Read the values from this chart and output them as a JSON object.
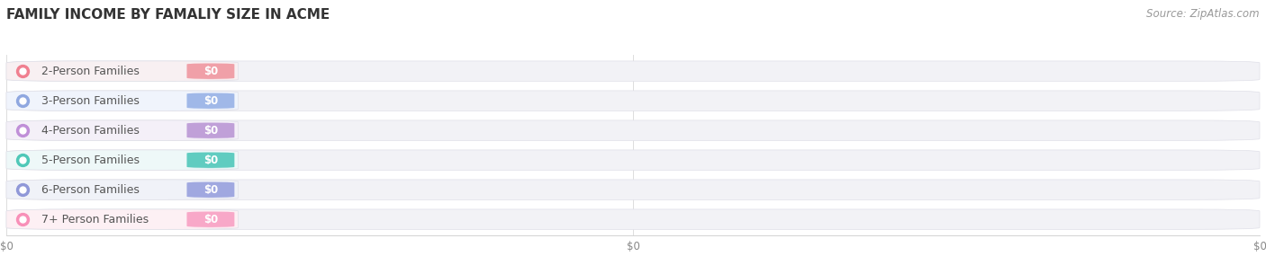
{
  "title": "FAMILY INCOME BY FAMALIY SIZE IN ACME",
  "source": "Source: ZipAtlas.com",
  "categories": [
    "2-Person Families",
    "3-Person Families",
    "4-Person Families",
    "5-Person Families",
    "6-Person Families",
    "7+ Person Families"
  ],
  "values": [
    0,
    0,
    0,
    0,
    0,
    0
  ],
  "dot_colors": [
    "#f08090",
    "#90a8e0",
    "#c090d8",
    "#50c8b8",
    "#9098d8",
    "#f890b8"
  ],
  "label_bg_colors": [
    "#f8f0f2",
    "#f0f4fc",
    "#f4f0f8",
    "#eef8f8",
    "#f0f2f8",
    "#fdf0f4"
  ],
  "badge_colors": [
    "#f0a0a8",
    "#a0b8e8",
    "#c0a0d8",
    "#60ccc0",
    "#a0a8e0",
    "#f8a8c8"
  ],
  "bar_bg_color": "#f2f2f6",
  "bar_bg_edge_color": "#e0e0e8",
  "background_color": "#ffffff",
  "xlim_max": 1.0,
  "title_fontsize": 11,
  "source_fontsize": 8.5,
  "label_fontsize": 9,
  "badge_fontsize": 8.5,
  "xtick_labels": [
    "$0",
    "$0",
    "$0"
  ],
  "xtick_positions": [
    0.0,
    0.5,
    1.0
  ]
}
